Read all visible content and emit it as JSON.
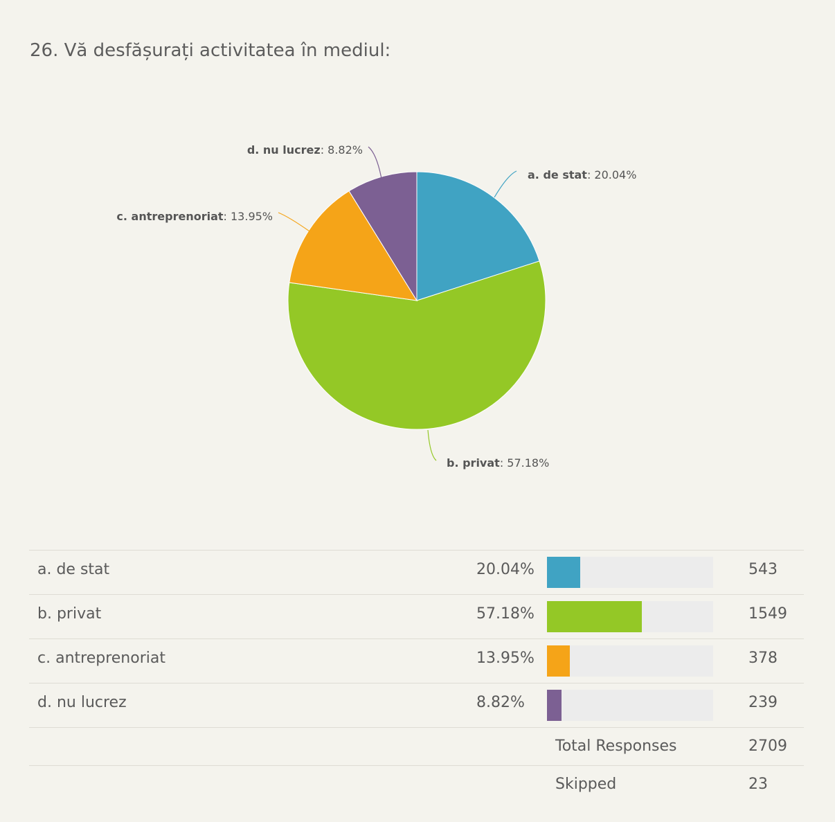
{
  "title": "26. Vă desfășurați activitatea în mediul:",
  "chart_data": {
    "type": "pie",
    "title": "26. Vă desfășurați activitatea în mediul:",
    "slices": [
      {
        "name": "a. de stat",
        "percent": 20.04,
        "pct_label": "20.04%",
        "count": 543,
        "color": "#40a3c3"
      },
      {
        "name": "b. privat",
        "percent": 57.18,
        "pct_label": "57.18%",
        "count": 1549,
        "color": "#94c826"
      },
      {
        "name": "c. antreprenoriat",
        "percent": 13.95,
        "pct_label": "13.95%",
        "count": 378,
        "color": "#f5a418"
      },
      {
        "name": "d. nu lucrez",
        "percent": 8.82,
        "pct_label": "8.82%",
        "count": 239,
        "color": "#7c6093"
      }
    ]
  },
  "rows": [
    {
      "name": "a. de stat",
      "pct": "20.04%",
      "count": "543",
      "fraction": 0.2004,
      "color": "#40a3c3"
    },
    {
      "name": "b. privat",
      "pct": "57.18%",
      "count": "1549",
      "fraction": 0.5718,
      "color": "#94c826"
    },
    {
      "name": "c. antreprenoriat",
      "pct": "13.95%",
      "count": "378",
      "fraction": 0.1395,
      "color": "#f5a418"
    },
    {
      "name": "d. nu lucrez",
      "pct": "8.82%",
      "count": "239",
      "fraction": 0.0882,
      "color": "#7c6093"
    }
  ],
  "summary": {
    "total_label": "Total Responses",
    "total_value": "2709",
    "skipped_label": "Skipped",
    "skipped_value": "23"
  }
}
